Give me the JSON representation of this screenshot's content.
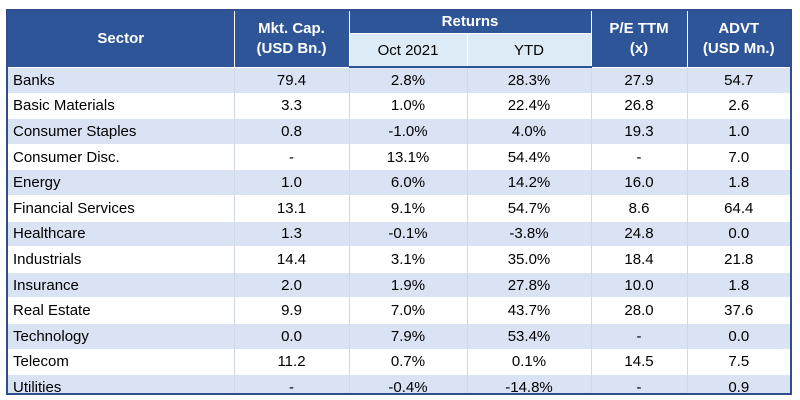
{
  "table": {
    "headers": {
      "sector": "Sector",
      "mkt_cap_line1": "Mkt. Cap.",
      "mkt_cap_line2": "(USD Bn.)",
      "returns": "Returns",
      "oct": "Oct 2021",
      "ytd": "YTD",
      "pe_line1": "P/E TTM",
      "pe_line2": "(x)",
      "advt_line1": "ADVT",
      "advt_line2": "(USD Mn.)"
    },
    "rows": [
      {
        "sector": "Banks",
        "mkt_cap": "79.4",
        "oct": "2.8%",
        "ytd": "28.3%",
        "pe": "27.9",
        "advt": "54.7"
      },
      {
        "sector": "Basic Materials",
        "mkt_cap": "3.3",
        "oct": "1.0%",
        "ytd": "22.4%",
        "pe": "26.8",
        "advt": "2.6"
      },
      {
        "sector": "Consumer Staples",
        "mkt_cap": "0.8",
        "oct": "-1.0%",
        "ytd": "4.0%",
        "pe": "19.3",
        "advt": "1.0"
      },
      {
        "sector": "Consumer Disc.",
        "mkt_cap": "-",
        "oct": "13.1%",
        "ytd": "54.4%",
        "pe": "-",
        "advt": "7.0"
      },
      {
        "sector": "Energy",
        "mkt_cap": "1.0",
        "oct": "6.0%",
        "ytd": "14.2%",
        "pe": "16.0",
        "advt": "1.8"
      },
      {
        "sector": "Financial Services",
        "mkt_cap": "13.1",
        "oct": "9.1%",
        "ytd": "54.7%",
        "pe": "8.6",
        "advt": "64.4"
      },
      {
        "sector": "Healthcare",
        "mkt_cap": "1.3",
        "oct": "-0.1%",
        "ytd": "-3.8%",
        "pe": "24.8",
        "advt": "0.0"
      },
      {
        "sector": "Industrials",
        "mkt_cap": "14.4",
        "oct": "3.1%",
        "ytd": "35.0%",
        "pe": "18.4",
        "advt": "21.8"
      },
      {
        "sector": "Insurance",
        "mkt_cap": "2.0",
        "oct": "1.9%",
        "ytd": "27.8%",
        "pe": "10.0",
        "advt": "1.8"
      },
      {
        "sector": "Real Estate",
        "mkt_cap": "9.9",
        "oct": "7.0%",
        "ytd": "43.7%",
        "pe": "28.0",
        "advt": "37.6"
      },
      {
        "sector": "Technology",
        "mkt_cap": "0.0",
        "oct": "7.9%",
        "ytd": "53.4%",
        "pe": "-",
        "advt": "0.0"
      },
      {
        "sector": "Telecom",
        "mkt_cap": "11.2",
        "oct": "0.7%",
        "ytd": "0.1%",
        "pe": "14.5",
        "advt": "7.5"
      },
      {
        "sector": "Utilities",
        "mkt_cap": "-",
        "oct": "-0.4%",
        "ytd": "-14.8%",
        "pe": "-",
        "advt": "0.9"
      }
    ]
  }
}
